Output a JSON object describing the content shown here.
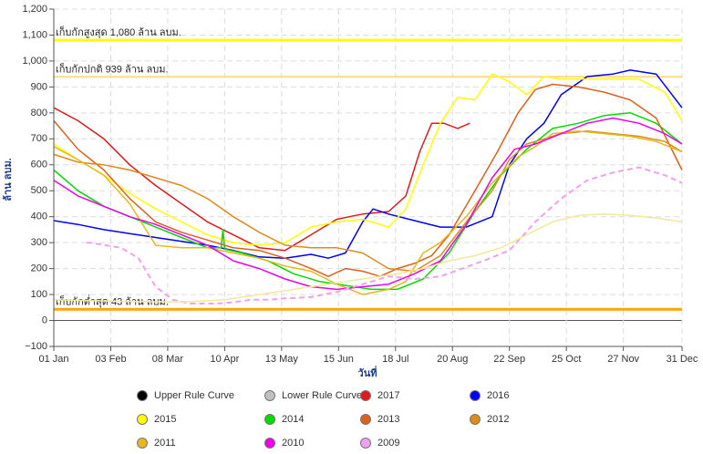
{
  "chart_data": {
    "type": "line",
    "xlabel": "วันที่",
    "ylabel": "ล้าน ลบม.",
    "ylim": [
      -100,
      1200
    ],
    "ytick_step": 100,
    "x_ticks": [
      "01 Jan",
      "03 Feb",
      "08 Mar",
      "10 Apr",
      "13 May",
      "15 Jun",
      "18 Jul",
      "20 Aug",
      "22 Sep",
      "25 Oct",
      "27 Nov",
      "31 Dec"
    ],
    "y_tick_labels": [
      "−100",
      "0",
      "100",
      "200",
      "300",
      "400",
      "500",
      "600",
      "700",
      "800",
      "900",
      "1,000",
      "1,100",
      "1,200"
    ],
    "grid": true,
    "reference_lines": [
      {
        "label": "เก็บกักสูงสุด 1,080 ล้าน ลบม.",
        "value": 1080,
        "color": "#ffff00"
      },
      {
        "label": "เก็บกักปกติ 939 ล้าน ลบม.",
        "value": 939,
        "color": "#ffd98c"
      },
      {
        "label": "เก็บกักต่ำสุด 43 ล้าน ลบม.",
        "value": 43,
        "color": "#ffa500"
      }
    ],
    "series": [
      {
        "name": "Upper Rule Curve",
        "color": "#000000",
        "values": []
      },
      {
        "name": "Lower Rule Curve",
        "color": "#c0c0c0",
        "values": []
      },
      {
        "name": "2017",
        "color": "#e31a1c",
        "values": [
          [
            1,
            820
          ],
          [
            15,
            770
          ],
          [
            30,
            700
          ],
          [
            45,
            600
          ],
          [
            60,
            520
          ],
          [
            75,
            450
          ],
          [
            90,
            380
          ],
          [
            105,
            330
          ],
          [
            120,
            280
          ],
          [
            135,
            270
          ],
          [
            150,
            330
          ],
          [
            165,
            390
          ],
          [
            180,
            410
          ],
          [
            195,
            420
          ],
          [
            205,
            480
          ],
          [
            213,
            650
          ],
          [
            220,
            760
          ],
          [
            227,
            760
          ],
          [
            235,
            740
          ],
          [
            242,
            760
          ]
        ]
      },
      {
        "name": "2016",
        "color": "#0000ff",
        "values": [
          [
            1,
            385
          ],
          [
            15,
            370
          ],
          [
            30,
            350
          ],
          [
            45,
            335
          ],
          [
            60,
            320
          ],
          [
            75,
            305
          ],
          [
            90,
            290
          ],
          [
            105,
            270
          ],
          [
            120,
            245
          ],
          [
            135,
            240
          ],
          [
            150,
            255
          ],
          [
            160,
            240
          ],
          [
            170,
            260
          ],
          [
            180,
            380
          ],
          [
            186,
            430
          ],
          [
            195,
            410
          ],
          [
            210,
            385
          ],
          [
            225,
            360
          ],
          [
            240,
            360
          ],
          [
            255,
            400
          ],
          [
            265,
            600
          ],
          [
            275,
            700
          ],
          [
            285,
            760
          ],
          [
            295,
            870
          ],
          [
            310,
            940
          ],
          [
            325,
            950
          ],
          [
            335,
            965
          ],
          [
            350,
            950
          ],
          [
            365,
            820
          ]
        ]
      },
      {
        "name": "2015",
        "color": "#ffff00",
        "values": [
          [
            1,
            680
          ],
          [
            15,
            620
          ],
          [
            30,
            560
          ],
          [
            45,
            490
          ],
          [
            60,
            430
          ],
          [
            75,
            380
          ],
          [
            90,
            330
          ],
          [
            105,
            300
          ],
          [
            120,
            290
          ],
          [
            135,
            300
          ],
          [
            150,
            360
          ],
          [
            165,
            380
          ],
          [
            180,
            390
          ],
          [
            195,
            360
          ],
          [
            205,
            430
          ],
          [
            215,
            600
          ],
          [
            225,
            760
          ],
          [
            235,
            860
          ],
          [
            245,
            850
          ],
          [
            255,
            950
          ],
          [
            265,
            920
          ],
          [
            275,
            870
          ],
          [
            285,
            940
          ],
          [
            295,
            930
          ],
          [
            310,
            930
          ],
          [
            325,
            930
          ],
          [
            340,
            930
          ],
          [
            355,
            880
          ],
          [
            365,
            770
          ]
        ]
      },
      {
        "name": "2014",
        "color": "#00dd00",
        "values": [
          [
            1,
            580
          ],
          [
            15,
            500
          ],
          [
            30,
            440
          ],
          [
            45,
            400
          ],
          [
            60,
            360
          ],
          [
            75,
            320
          ],
          [
            90,
            280
          ],
          [
            98,
            280
          ],
          [
            99,
            350
          ],
          [
            100,
            275
          ],
          [
            110,
            260
          ],
          [
            125,
            230
          ],
          [
            140,
            180
          ],
          [
            155,
            150
          ],
          [
            170,
            135
          ],
          [
            185,
            120
          ],
          [
            200,
            120
          ],
          [
            215,
            160
          ],
          [
            230,
            260
          ],
          [
            245,
            420
          ],
          [
            260,
            560
          ],
          [
            275,
            660
          ],
          [
            290,
            740
          ],
          [
            305,
            760
          ],
          [
            320,
            790
          ],
          [
            335,
            800
          ],
          [
            350,
            760
          ],
          [
            365,
            680
          ]
        ]
      },
      {
        "name": "2013",
        "color": "#e0601a",
        "values": [
          [
            1,
            770
          ],
          [
            15,
            660
          ],
          [
            30,
            580
          ],
          [
            45,
            470
          ],
          [
            60,
            380
          ],
          [
            75,
            340
          ],
          [
            90,
            310
          ],
          [
            105,
            280
          ],
          [
            120,
            270
          ],
          [
            135,
            240
          ],
          [
            150,
            200
          ],
          [
            160,
            170
          ],
          [
            170,
            200
          ],
          [
            180,
            190
          ],
          [
            190,
            170
          ],
          [
            200,
            200
          ],
          [
            210,
            220
          ],
          [
            220,
            250
          ],
          [
            230,
            330
          ],
          [
            245,
            500
          ],
          [
            258,
            650
          ],
          [
            270,
            800
          ],
          [
            280,
            890
          ],
          [
            290,
            910
          ],
          [
            305,
            900
          ],
          [
            320,
            880
          ],
          [
            335,
            850
          ],
          [
            350,
            780
          ],
          [
            365,
            580
          ]
        ]
      },
      {
        "name": "2012",
        "color": "#e08a1c",
        "values": [
          [
            1,
            640
          ],
          [
            15,
            610
          ],
          [
            30,
            600
          ],
          [
            45,
            580
          ],
          [
            60,
            550
          ],
          [
            75,
            520
          ],
          [
            90,
            470
          ],
          [
            105,
            400
          ],
          [
            120,
            340
          ],
          [
            135,
            290
          ],
          [
            150,
            280
          ],
          [
            165,
            280
          ],
          [
            180,
            260
          ],
          [
            195,
            200
          ],
          [
            210,
            190
          ],
          [
            225,
            250
          ],
          [
            240,
            380
          ],
          [
            255,
            500
          ],
          [
            265,
            620
          ],
          [
            275,
            680
          ],
          [
            285,
            700
          ],
          [
            295,
            720
          ],
          [
            310,
            730
          ],
          [
            325,
            720
          ],
          [
            340,
            710
          ],
          [
            355,
            690
          ],
          [
            365,
            650
          ]
        ]
      },
      {
        "name": "2011",
        "color": "#e6b81c",
        "values": [
          [
            1,
            670
          ],
          [
            15,
            620
          ],
          [
            30,
            560
          ],
          [
            45,
            450
          ],
          [
            60,
            290
          ],
          [
            75,
            280
          ],
          [
            90,
            280
          ],
          [
            105,
            260
          ],
          [
            120,
            240
          ],
          [
            135,
            210
          ],
          [
            150,
            190
          ],
          [
            165,
            140
          ],
          [
            180,
            100
          ],
          [
            195,
            120
          ],
          [
            205,
            150
          ],
          [
            215,
            260
          ],
          [
            225,
            300
          ],
          [
            240,
            400
          ],
          [
            255,
            530
          ],
          [
            270,
            630
          ],
          [
            280,
            670
          ],
          [
            290,
            720
          ],
          [
            305,
            730
          ],
          [
            320,
            720
          ],
          [
            335,
            710
          ],
          [
            350,
            690
          ],
          [
            365,
            650
          ]
        ]
      },
      {
        "name": "2010",
        "color": "#ee00ee",
        "values": [
          [
            1,
            540
          ],
          [
            15,
            480
          ],
          [
            30,
            440
          ],
          [
            45,
            400
          ],
          [
            60,
            370
          ],
          [
            75,
            330
          ],
          [
            90,
            290
          ],
          [
            105,
            230
          ],
          [
            120,
            200
          ],
          [
            135,
            160
          ],
          [
            150,
            130
          ],
          [
            165,
            120
          ],
          [
            180,
            130
          ],
          [
            195,
            140
          ],
          [
            210,
            180
          ],
          [
            225,
            230
          ],
          [
            240,
            370
          ],
          [
            255,
            550
          ],
          [
            268,
            660
          ],
          [
            280,
            680
          ],
          [
            295,
            720
          ],
          [
            310,
            760
          ],
          [
            325,
            780
          ],
          [
            340,
            760
          ],
          [
            355,
            720
          ],
          [
            365,
            680
          ]
        ]
      },
      {
        "name": "2009",
        "color": "#f0a0f0",
        "values": [
          [
            20,
            300
          ],
          [
            22,
            300
          ],
          [
            40,
            280
          ],
          [
            50,
            240
          ],
          [
            60,
            130
          ],
          [
            70,
            80
          ],
          [
            80,
            65
          ],
          [
            95,
            65
          ],
          [
            105,
            70
          ],
          [
            115,
            80
          ],
          [
            125,
            80
          ],
          [
            135,
            85
          ],
          [
            150,
            90
          ],
          [
            165,
            110
          ],
          [
            180,
            140
          ],
          [
            195,
            170
          ],
          [
            210,
            160
          ],
          [
            225,
            170
          ],
          [
            250,
            230
          ],
          [
            265,
            270
          ],
          [
            280,
            380
          ],
          [
            295,
            470
          ],
          [
            310,
            540
          ],
          [
            325,
            570
          ],
          [
            340,
            590
          ],
          [
            355,
            560
          ],
          [
            365,
            530
          ]
        ]
      },
      {
        "name": "",
        "color": "#f2e89a",
        "values": [
          [
            1,
            80
          ],
          [
            10,
            78
          ],
          [
            25,
            76
          ],
          [
            40,
            74
          ],
          [
            60,
            72
          ],
          [
            80,
            72
          ],
          [
            100,
            80
          ],
          [
            120,
            100
          ],
          [
            140,
            120
          ],
          [
            160,
            140
          ],
          [
            180,
            160
          ],
          [
            200,
            180
          ],
          [
            215,
            200
          ],
          [
            230,
            230
          ],
          [
            245,
            250
          ],
          [
            260,
            280
          ],
          [
            275,
            330
          ],
          [
            290,
            380
          ],
          [
            305,
            405
          ],
          [
            320,
            410
          ],
          [
            335,
            405
          ],
          [
            350,
            395
          ],
          [
            365,
            380
          ]
        ]
      }
    ]
  }
}
